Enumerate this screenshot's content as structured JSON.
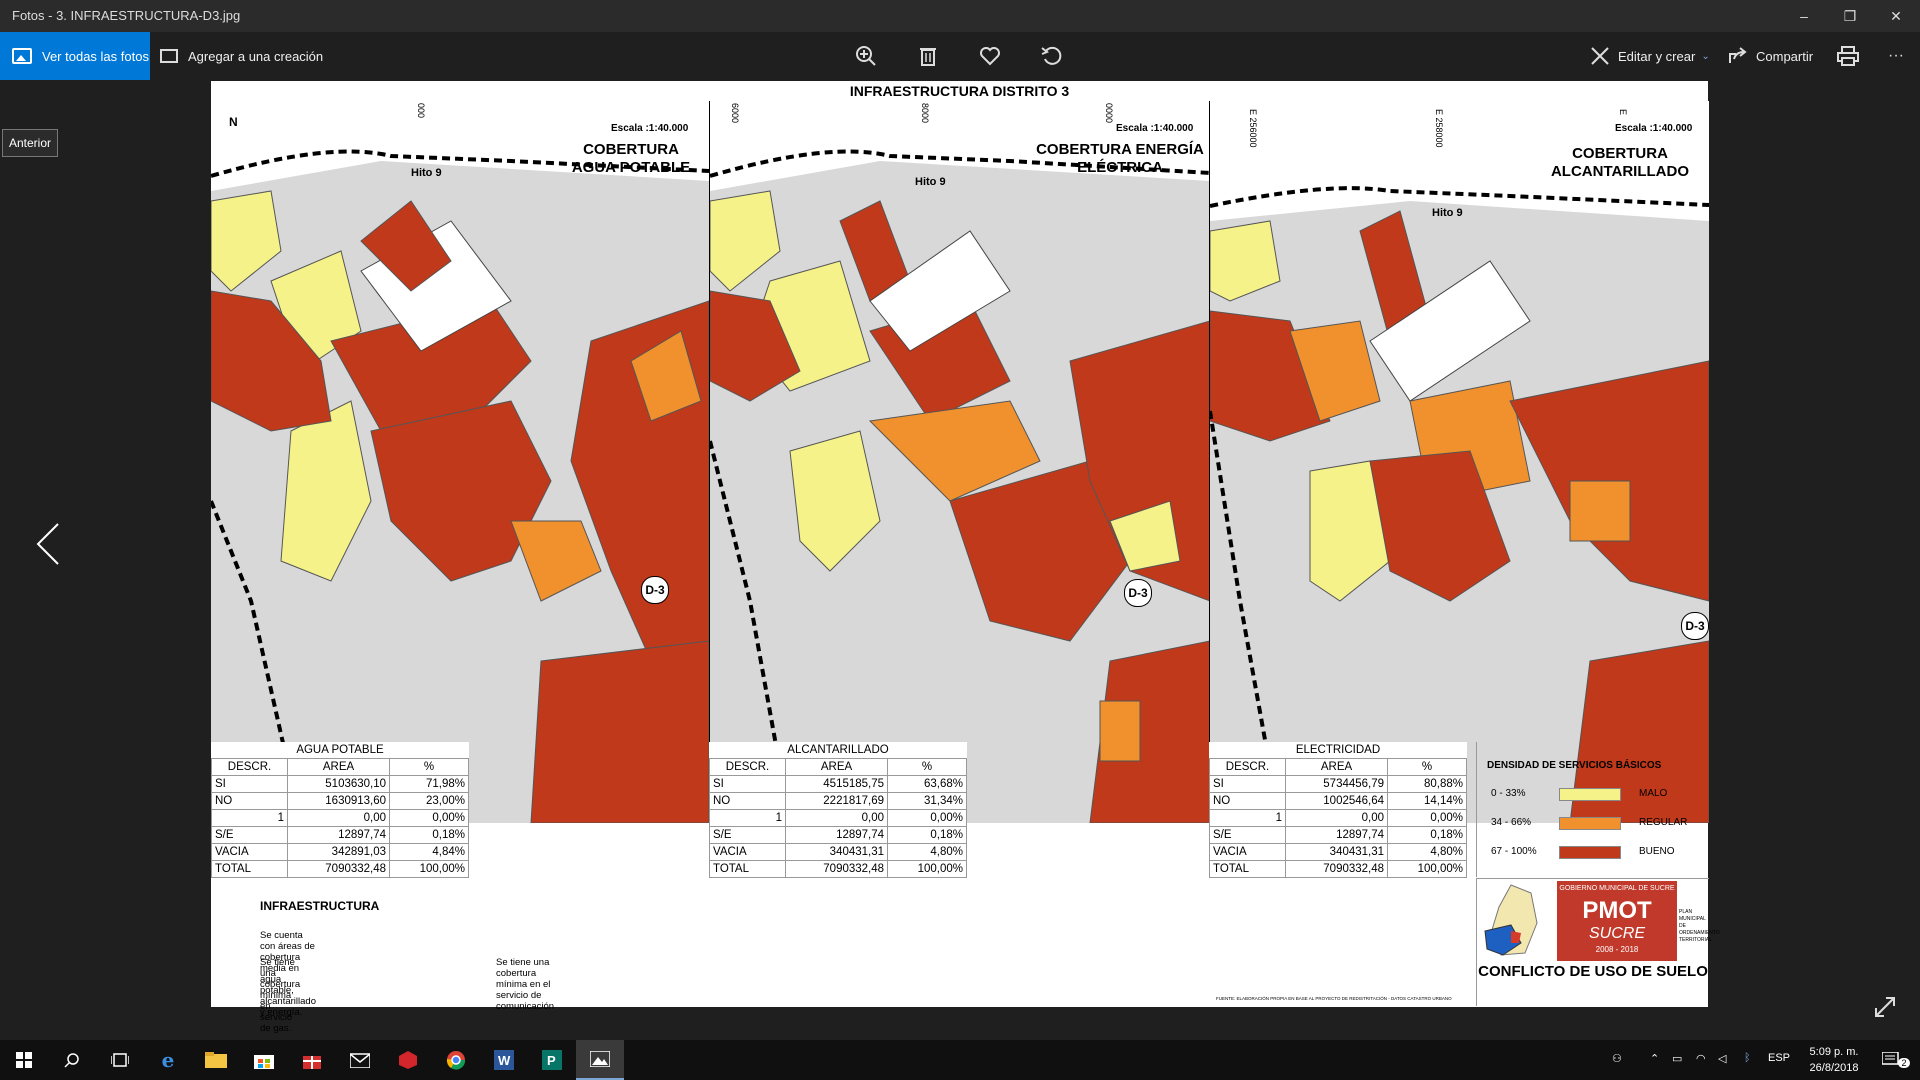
{
  "window": {
    "title": "Fotos - 3. INFRAESTRUCTURA-D3.jpg",
    "minimize": "–",
    "maximize": "❐",
    "close": "✕"
  },
  "toolbar": {
    "see_all": "Ver todas las fotos",
    "add_to_creation": "Agregar a una creación",
    "edit_create": "Editar y crear",
    "share": "Compartir",
    "more": "···"
  },
  "nav": {
    "previous_tooltip": "Anterior"
  },
  "map": {
    "title": "INFRAESTRUCTURA DISTRITO 3",
    "north": "N",
    "panels": [
      {
        "scale": "Escala :1:40.000",
        "title": "COBERTURA AGUA POTABLE",
        "hito": "Hito 9",
        "district": "D-3",
        "coords": [
          "000"
        ]
      },
      {
        "scale": "Escala :1:40.000",
        "title": "COBERTURA ENERGÍA ELÉCTRICA",
        "hito": "Hito 9",
        "district": "D-3",
        "coords": [
          "6000",
          "8000",
          "0000"
        ]
      },
      {
        "scale": "Escala :1:40.000",
        "title": "COBERTURA ALCANTARILLADO",
        "hito": "Hito 9",
        "district": "D-3",
        "coords": [
          "E 256000",
          "E 258000",
          "E"
        ]
      }
    ],
    "tables": [
      {
        "caption": "AGUA POTABLE",
        "headers": [
          "DESCR.",
          "AREA",
          "%"
        ],
        "rows": [
          [
            "SI",
            "5103630,10",
            "71,98%"
          ],
          [
            "NO",
            "1630913,60",
            "23,00%"
          ],
          [
            "1",
            "0,00",
            "0,00%"
          ],
          [
            "S/E",
            "12897,74",
            "0,18%"
          ],
          [
            "VACIA",
            "342891,03",
            "4,84%"
          ],
          [
            "TOTAL",
            "7090332,48",
            "100,00%"
          ]
        ]
      },
      {
        "caption": "ALCANTARILLADO",
        "headers": [
          "DESCR.",
          "AREA",
          "%"
        ],
        "rows": [
          [
            "SI",
            "4515185,75",
            "63,68%"
          ],
          [
            "NO",
            "2221817,69",
            "31,34%"
          ],
          [
            "1",
            "0,00",
            "0,00%"
          ],
          [
            "S/E",
            "12897,74",
            "0,18%"
          ],
          [
            "VACIA",
            "340431,31",
            "4,80%"
          ],
          [
            "TOTAL",
            "7090332,48",
            "100,00%"
          ]
        ]
      },
      {
        "caption": "ELECTRICIDAD",
        "headers": [
          "DESCR.",
          "AREA",
          "%"
        ],
        "rows": [
          [
            "SI",
            "5734456,79",
            "80,88%"
          ],
          [
            "NO",
            "1002546,64",
            "14,14%"
          ],
          [
            "1",
            "0,00",
            "0,00%"
          ],
          [
            "S/E",
            "12897,74",
            "0,18%"
          ],
          [
            "VACIA",
            "340431,31",
            "4,80%"
          ],
          [
            "TOTAL",
            "7090332,48",
            "100,00%"
          ]
        ]
      }
    ],
    "legend": {
      "title": "DENSIDAD DE SERVICIOS BÁSICOS",
      "items": [
        {
          "range": "0 - 33%",
          "name": "MALO",
          "color": "#f5f28a"
        },
        {
          "range": "34 - 66%",
          "name": "REGULAR",
          "color": "#f0912e"
        },
        {
          "range": "67 - 100%",
          "name": "BUENO",
          "color": "#c0391b"
        }
      ]
    },
    "logo": {
      "top": "GOBIERNO MUNICIPAL DE SUCRE",
      "name": "PMOT",
      "city": "SUCRE",
      "years": "2008 - 2018",
      "side": "PLAN MUNICIPAL DE ORDENAMIENTO TERRITORIAL"
    },
    "conflict": "CONFLICTO DE USO DE SUELO",
    "notes": {
      "heading": "INFRAESTRUCTURA",
      "line1": "Se cuenta con áreas de cobertura media en agua potable, alcantarillado y energía.",
      "line2a": "Se tiene una cobertura mínima en servicio de gas.",
      "line2b": "Se tiene una cobertura mínima en el servicio de comunicación"
    },
    "fine_print": "FUENTE: ELABORACIÓN PROPIA EN BASE AL PROYECTO DE REDISTRITACIÓN - DATOS CATASTRO URBANO"
  },
  "taskbar": {
    "lang": "ESP",
    "time": "5:09 p. m.",
    "date": "26/8/2018",
    "notif": "2"
  },
  "colors": {
    "accent": "#0078d7",
    "bueno": "#c0391b",
    "regular": "#f0912e",
    "malo": "#f5f28a"
  }
}
